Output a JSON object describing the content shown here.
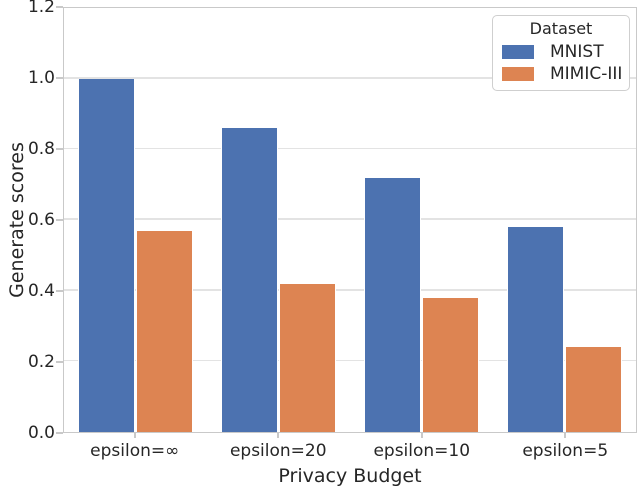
{
  "chart_data": {
    "type": "bar",
    "title": "",
    "xlabel": "Privacy Budget",
    "ylabel": "Generate scores",
    "categories": [
      "epsilon=∞",
      "epsilon=20",
      "epsilon=10",
      "epsilon=5"
    ],
    "series": [
      {
        "name": "MNIST",
        "color": "#4C72B0",
        "values": [
          1.0,
          0.86,
          0.72,
          0.58
        ]
      },
      {
        "name": "MIMIC-III",
        "color": "#DD8452",
        "values": [
          0.57,
          0.42,
          0.38,
          0.24
        ]
      }
    ],
    "ylim": [
      0.0,
      1.2
    ],
    "yticks": [
      0.0,
      0.2,
      0.4,
      0.6,
      0.8,
      1.0,
      1.2
    ],
    "ytick_format_decimals": 1,
    "grid": true,
    "bar_group_width": 0.8,
    "legend": {
      "title": "Dataset",
      "position": "upper-right"
    }
  },
  "colors": {
    "background": "#ffffff",
    "grid": "#e3e3e3",
    "spine": "#c9c9c9",
    "text": "#262626"
  }
}
